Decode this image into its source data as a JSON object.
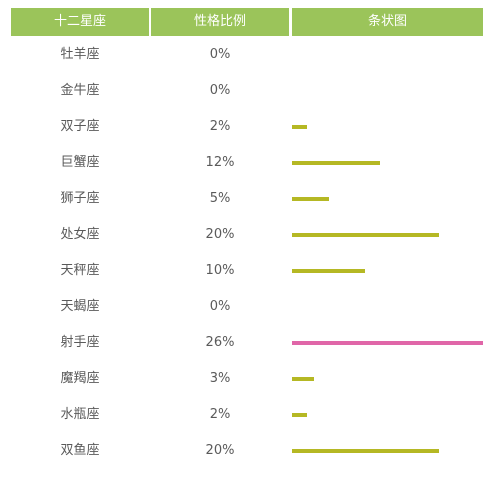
{
  "header": {
    "col1": "十二星座",
    "col2": "性格比例",
    "col3": "条状图"
  },
  "colors": {
    "header_bg": "#9bc45a",
    "bar_default": "#b5b824",
    "bar_highlight": "#e066a8",
    "text": "#5a5a5a"
  },
  "chart_data": {
    "type": "bar",
    "orientation": "horizontal",
    "categories": [
      "牡羊座",
      "金牛座",
      "双子座",
      "巨蟹座",
      "狮子座",
      "处女座",
      "天秤座",
      "天蝎座",
      "射手座",
      "魔羯座",
      "水瓶座",
      "双鱼座"
    ],
    "values": [
      0,
      0,
      2,
      12,
      5,
      20,
      10,
      0,
      26,
      3,
      2,
      20
    ],
    "labels": [
      "0%",
      "0%",
      "2%",
      "12%",
      "5%",
      "20%",
      "10%",
      "0%",
      "26%",
      "3%",
      "2%",
      "20%"
    ],
    "highlight_index": 8,
    "xlim": [
      0,
      26
    ],
    "grid": false,
    "legend": "none"
  }
}
